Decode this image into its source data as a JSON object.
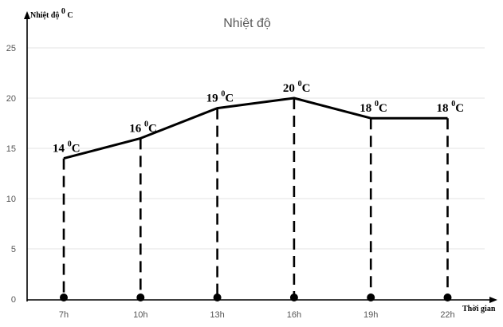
{
  "chart_data": {
    "type": "line",
    "title": "Nhiệt độ",
    "ylabel": "Nhiệt độ",
    "ylabel_unit": "C",
    "xlabel": "Thời gian",
    "categories": [
      "7h",
      "10h",
      "13h",
      "16h",
      "19h",
      "22h"
    ],
    "values": [
      14,
      16,
      19,
      20,
      18,
      18
    ],
    "data_labels": [
      {
        "value": "14",
        "unit": "C"
      },
      {
        "value": "16",
        "unit": "C"
      },
      {
        "value": "19",
        "unit": "C"
      },
      {
        "value": "20",
        "unit": "C"
      },
      {
        "value": "18",
        "unit": "C"
      },
      {
        "value": "18",
        "unit": "C"
      }
    ],
    "degree_sup": "0",
    "yticks": [
      0,
      5,
      10,
      15,
      20,
      25
    ],
    "ylim": [
      0,
      28
    ],
    "grid": true,
    "legend": "none"
  }
}
